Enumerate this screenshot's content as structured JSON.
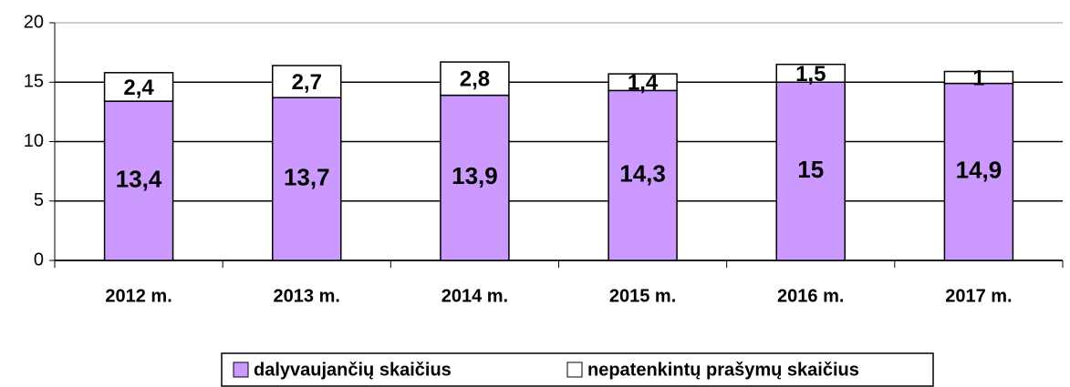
{
  "chart_data": {
    "type": "stacked_bar",
    "categories": [
      "2012 m.",
      "2013 m.",
      "2014 m.",
      "2015 m.",
      "2016 m.",
      "2017 m."
    ],
    "series": [
      {
        "name": "dalyvaujančių skaičius",
        "color": "#cc99ff",
        "values": [
          13.4,
          13.7,
          13.9,
          14.3,
          15,
          14.9
        ],
        "value_labels": [
          "13,4",
          "13,7",
          "13,9",
          "14,3",
          "15",
          "14,9"
        ]
      },
      {
        "name": "nepatenkintų prašymų skaičius",
        "color": "#ffffff",
        "values": [
          2.4,
          2.7,
          2.8,
          1.4,
          1.5,
          1
        ],
        "value_labels": [
          "2,4",
          "2,7",
          "2,8",
          "1,4",
          "1,5",
          "1"
        ]
      }
    ],
    "ylim": [
      0,
      20
    ],
    "yticks": [
      0,
      5,
      10,
      15,
      20
    ],
    "grid": true,
    "legend": "bottom"
  }
}
